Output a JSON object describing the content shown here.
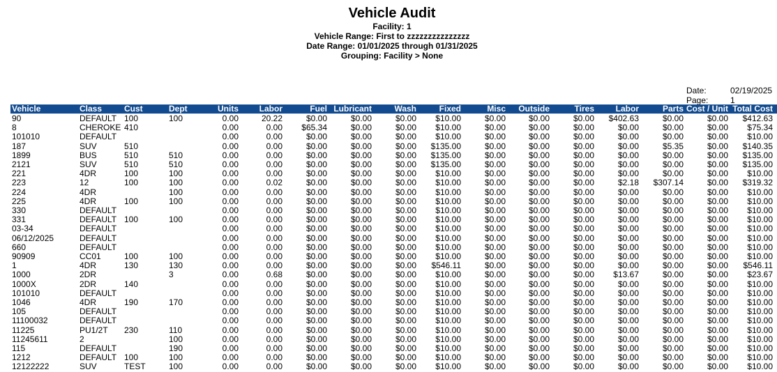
{
  "report": {
    "title": "Vehicle Audit",
    "facility": "Facility: 1",
    "vehicle_range": "Vehicle Range: First to zzzzzzzzzzzzzzz",
    "date_range": "Date Range: 01/01/2025 through 01/31/2025",
    "grouping": "Grouping: Facility > None",
    "date_label": "Date:",
    "date_value": "02/19/2025",
    "page_label": "Page:",
    "page_value": "1"
  },
  "colors": {
    "header_bar": "#124b8f"
  },
  "columns": [
    "Vehicle",
    "Class",
    "Cust",
    "Dept",
    "Units",
    "Labor",
    "Fuel",
    "Lubricant",
    "Wash",
    "Fixed",
    "Misc",
    "Outside",
    "Tires",
    "Labor",
    "Parts",
    "Cost / Unit",
    "Total Cost"
  ],
  "rows": [
    [
      "90",
      "DEFAULT",
      "100",
      "100",
      "0.00",
      "20.22",
      "$0.00",
      "$0.00",
      "$0.00",
      "$10.00",
      "$0.00",
      "$0.00",
      "$0.00",
      "$402.63",
      "$0.00",
      "$0.00",
      "$412.63"
    ],
    [
      "8",
      "CHEROKE",
      "410",
      "",
      "0.00",
      "0.00",
      "$65.34",
      "$0.00",
      "$0.00",
      "$10.00",
      "$0.00",
      "$0.00",
      "$0.00",
      "$0.00",
      "$0.00",
      "$0.00",
      "$75.34"
    ],
    [
      "101010",
      "DEFAULT",
      "",
      "",
      "0.00",
      "0.00",
      "$0.00",
      "$0.00",
      "$0.00",
      "$10.00",
      "$0.00",
      "$0.00",
      "$0.00",
      "$0.00",
      "$0.00",
      "$0.00",
      "$10.00"
    ],
    [
      "187",
      "SUV",
      "510",
      "",
      "0.00",
      "0.00",
      "$0.00",
      "$0.00",
      "$0.00",
      "$135.00",
      "$0.00",
      "$0.00",
      "$0.00",
      "$0.00",
      "$5.35",
      "$0.00",
      "$140.35"
    ],
    [
      "1899",
      "BUS",
      "510",
      "510",
      "0.00",
      "0.00",
      "$0.00",
      "$0.00",
      "$0.00",
      "$135.00",
      "$0.00",
      "$0.00",
      "$0.00",
      "$0.00",
      "$0.00",
      "$0.00",
      "$135.00"
    ],
    [
      "2121",
      "SUV",
      "510",
      "510",
      "0.00",
      "0.00",
      "$0.00",
      "$0.00",
      "$0.00",
      "$135.00",
      "$0.00",
      "$0.00",
      "$0.00",
      "$0.00",
      "$0.00",
      "$0.00",
      "$135.00"
    ],
    [
      "221",
      "4DR",
      "100",
      "100",
      "0.00",
      "0.00",
      "$0.00",
      "$0.00",
      "$0.00",
      "$10.00",
      "$0.00",
      "$0.00",
      "$0.00",
      "$0.00",
      "$0.00",
      "$0.00",
      "$10.00"
    ],
    [
      "223",
      "12",
      "100",
      "100",
      "0.00",
      "0.02",
      "$0.00",
      "$0.00",
      "$0.00",
      "$10.00",
      "$0.00",
      "$0.00",
      "$0.00",
      "$2.18",
      "$307.14",
      "$0.00",
      "$319.32"
    ],
    [
      "224",
      "4DR",
      "",
      "100",
      "0.00",
      "0.00",
      "$0.00",
      "$0.00",
      "$0.00",
      "$10.00",
      "$0.00",
      "$0.00",
      "$0.00",
      "$0.00",
      "$0.00",
      "$0.00",
      "$10.00"
    ],
    [
      "225",
      "4DR",
      "100",
      "100",
      "0.00",
      "0.00",
      "$0.00",
      "$0.00",
      "$0.00",
      "$10.00",
      "$0.00",
      "$0.00",
      "$0.00",
      "$0.00",
      "$0.00",
      "$0.00",
      "$10.00"
    ],
    [
      "330",
      "DEFAULT",
      "",
      "",
      "0.00",
      "0.00",
      "$0.00",
      "$0.00",
      "$0.00",
      "$10.00",
      "$0.00",
      "$0.00",
      "$0.00",
      "$0.00",
      "$0.00",
      "$0.00",
      "$10.00"
    ],
    [
      "331",
      "DEFAULT",
      "100",
      "100",
      "0.00",
      "0.00",
      "$0.00",
      "$0.00",
      "$0.00",
      "$10.00",
      "$0.00",
      "$0.00",
      "$0.00",
      "$0.00",
      "$0.00",
      "$0.00",
      "$10.00"
    ],
    [
      "03-34",
      "DEFAULT",
      "",
      "",
      "0.00",
      "0.00",
      "$0.00",
      "$0.00",
      "$0.00",
      "$10.00",
      "$0.00",
      "$0.00",
      "$0.00",
      "$0.00",
      "$0.00",
      "$0.00",
      "$10.00"
    ],
    [
      "06/12/2025",
      "DEFAULT",
      "",
      "",
      "0.00",
      "0.00",
      "$0.00",
      "$0.00",
      "$0.00",
      "$10.00",
      "$0.00",
      "$0.00",
      "$0.00",
      "$0.00",
      "$0.00",
      "$0.00",
      "$10.00"
    ],
    [
      "660",
      "DEFAULT",
      "",
      "",
      "0.00",
      "0.00",
      "$0.00",
      "$0.00",
      "$0.00",
      "$10.00",
      "$0.00",
      "$0.00",
      "$0.00",
      "$0.00",
      "$0.00",
      "$0.00",
      "$10.00"
    ],
    [
      "90909",
      "CC01",
      "100",
      "100",
      "0.00",
      "0.00",
      "$0.00",
      "$0.00",
      "$0.00",
      "$10.00",
      "$0.00",
      "$0.00",
      "$0.00",
      "$0.00",
      "$0.00",
      "$0.00",
      "$10.00"
    ],
    [
      "1",
      "4DR",
      "130",
      "130",
      "0.00",
      "0.00",
      "$0.00",
      "$0.00",
      "$0.00",
      "$546.11",
      "$0.00",
      "$0.00",
      "$0.00",
      "$0.00",
      "$0.00",
      "$0.00",
      "$546.11"
    ],
    [
      "1000",
      "2DR",
      "",
      "3",
      "0.00",
      "0.68",
      "$0.00",
      "$0.00",
      "$0.00",
      "$10.00",
      "$0.00",
      "$0.00",
      "$0.00",
      "$13.67",
      "$0.00",
      "$0.00",
      "$23.67"
    ],
    [
      "1000X",
      "2DR",
      "140",
      "",
      "0.00",
      "0.00",
      "$0.00",
      "$0.00",
      "$0.00",
      "$10.00",
      "$0.00",
      "$0.00",
      "$0.00",
      "$0.00",
      "$0.00",
      "$0.00",
      "$10.00"
    ],
    [
      "101010",
      "DEFAULT",
      "",
      "",
      "0.00",
      "0.00",
      "$0.00",
      "$0.00",
      "$0.00",
      "$10.00",
      "$0.00",
      "$0.00",
      "$0.00",
      "$0.00",
      "$0.00",
      "$0.00",
      "$10.00"
    ],
    [
      "1046",
      "4DR",
      "190",
      "170",
      "0.00",
      "0.00",
      "$0.00",
      "$0.00",
      "$0.00",
      "$10.00",
      "$0.00",
      "$0.00",
      "$0.00",
      "$0.00",
      "$0.00",
      "$0.00",
      "$10.00"
    ],
    [
      "105",
      "DEFAULT",
      "",
      "",
      "0.00",
      "0.00",
      "$0.00",
      "$0.00",
      "$0.00",
      "$10.00",
      "$0.00",
      "$0.00",
      "$0.00",
      "$0.00",
      "$0.00",
      "$0.00",
      "$10.00"
    ],
    [
      "11100032",
      "DEFAULT",
      "",
      "",
      "0.00",
      "0.00",
      "$0.00",
      "$0.00",
      "$0.00",
      "$10.00",
      "$0.00",
      "$0.00",
      "$0.00",
      "$0.00",
      "$0.00",
      "$0.00",
      "$10.00"
    ],
    [
      "11225",
      "PU1/2T",
      "230",
      "110",
      "0.00",
      "0.00",
      "$0.00",
      "$0.00",
      "$0.00",
      "$10.00",
      "$0.00",
      "$0.00",
      "$0.00",
      "$0.00",
      "$0.00",
      "$0.00",
      "$10.00"
    ],
    [
      "11245611",
      "2",
      "",
      "100",
      "0.00",
      "0.00",
      "$0.00",
      "$0.00",
      "$0.00",
      "$10.00",
      "$0.00",
      "$0.00",
      "$0.00",
      "$0.00",
      "$0.00",
      "$0.00",
      "$10.00"
    ],
    [
      "115",
      "DEFAULT",
      "",
      "190",
      "0.00",
      "0.00",
      "$0.00",
      "$0.00",
      "$0.00",
      "$10.00",
      "$0.00",
      "$0.00",
      "$0.00",
      "$0.00",
      "$0.00",
      "$0.00",
      "$10.00"
    ],
    [
      "1212",
      "DEFAULT",
      "100",
      "100",
      "0.00",
      "0.00",
      "$0.00",
      "$0.00",
      "$0.00",
      "$10.00",
      "$0.00",
      "$0.00",
      "$0.00",
      "$0.00",
      "$0.00",
      "$0.00",
      "$10.00"
    ],
    [
      "12122222",
      "SUV",
      "TEST",
      "100",
      "0.00",
      "0.00",
      "$0.00",
      "$0.00",
      "$0.00",
      "$10.00",
      "$0.00",
      "$0.00",
      "$0.00",
      "$0.00",
      "$0.00",
      "$0.00",
      "$10.00"
    ]
  ]
}
